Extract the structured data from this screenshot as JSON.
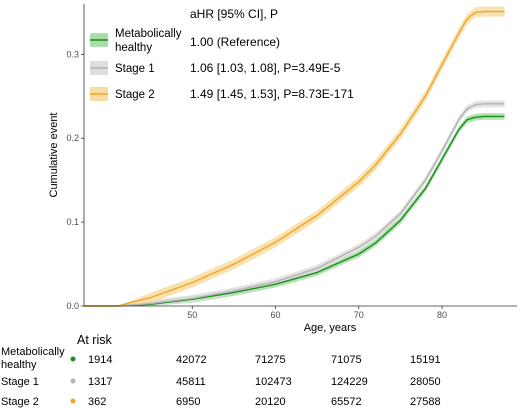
{
  "chart_data": {
    "type": "line",
    "xlabel": "Age, years",
    "ylabel": "Cumulative event",
    "xlim": [
      37,
      89
    ],
    "ylim": [
      0,
      0.36
    ],
    "x_ticks": [
      50,
      60,
      70,
      80
    ],
    "y_ticks": [
      0.0,
      0.1,
      0.2,
      0.3
    ],
    "y_tick_labels": [
      "0.0",
      "0.1",
      "0.2",
      "0.3"
    ],
    "grid": false,
    "legend_header": "aHR [95% CI], P",
    "series": [
      {
        "name": "Metabolically healthy",
        "color": "#1a8c1a",
        "band_color": "#a7dca7",
        "stat": "1.00 (Reference)",
        "x": [
          37,
          41,
          45,
          50,
          55,
          60,
          65,
          70,
          72,
          75,
          78,
          80,
          82,
          83,
          84,
          85,
          87.5
        ],
        "y": [
          0,
          0,
          0.002,
          0.008,
          0.016,
          0.026,
          0.04,
          0.062,
          0.075,
          0.102,
          0.14,
          0.175,
          0.21,
          0.222,
          0.225,
          0.226,
          0.226
        ],
        "band": 0.004
      },
      {
        "name": "Stage 1",
        "color": "#b3b3b3",
        "band_color": "#dedede",
        "stat": "1.06 [1.03, 1.08], P=3.49E-5",
        "x": [
          37,
          41,
          45,
          50,
          55,
          60,
          65,
          70,
          72,
          75,
          78,
          80,
          82,
          83,
          84,
          85,
          87.5
        ],
        "y": [
          0,
          0,
          0.003,
          0.009,
          0.018,
          0.029,
          0.045,
          0.07,
          0.083,
          0.11,
          0.15,
          0.185,
          0.222,
          0.235,
          0.24,
          0.241,
          0.241
        ],
        "band": 0.004
      },
      {
        "name": "Stage 2",
        "color": "#f0a622",
        "band_color": "#f8dca4",
        "stat": "1.49 [1.45, 1.53], P=8.73E-171",
        "x": [
          37,
          41,
          45,
          50,
          55,
          60,
          65,
          70,
          72,
          75,
          78,
          80,
          82,
          83,
          84,
          85,
          87.5
        ],
        "y": [
          0,
          0,
          0.01,
          0.028,
          0.05,
          0.076,
          0.108,
          0.148,
          0.168,
          0.205,
          0.25,
          0.288,
          0.325,
          0.342,
          0.35,
          0.351,
          0.351
        ],
        "band": 0.006
      }
    ]
  },
  "at_risk": {
    "title": "At risk",
    "rows": [
      {
        "group": "Metabolically healthy",
        "label_line1": "Metabolically",
        "label_line2": "healthy",
        "color": "#1a8c1a",
        "values": [
          "1914",
          "42072",
          "71275",
          "71075",
          "15191"
        ]
      },
      {
        "group": "Stage 1",
        "label_line1": "Stage 1",
        "label_line2": "",
        "color": "#b3b3b3",
        "values": [
          "1317",
          "45811",
          "102473",
          "124229",
          "28050"
        ]
      },
      {
        "group": "Stage 2",
        "label_line1": "Stage 2",
        "label_line2": "",
        "color": "#f0a622",
        "values": [
          "362",
          "6950",
          "20120",
          "65572",
          "27588"
        ]
      }
    ]
  },
  "legend": {
    "entries": [
      {
        "line1": "Metabolically",
        "line2": "healthy"
      },
      {
        "line1": "Stage 1",
        "line2": ""
      },
      {
        "line1": "Stage 2",
        "line2": ""
      }
    ]
  }
}
